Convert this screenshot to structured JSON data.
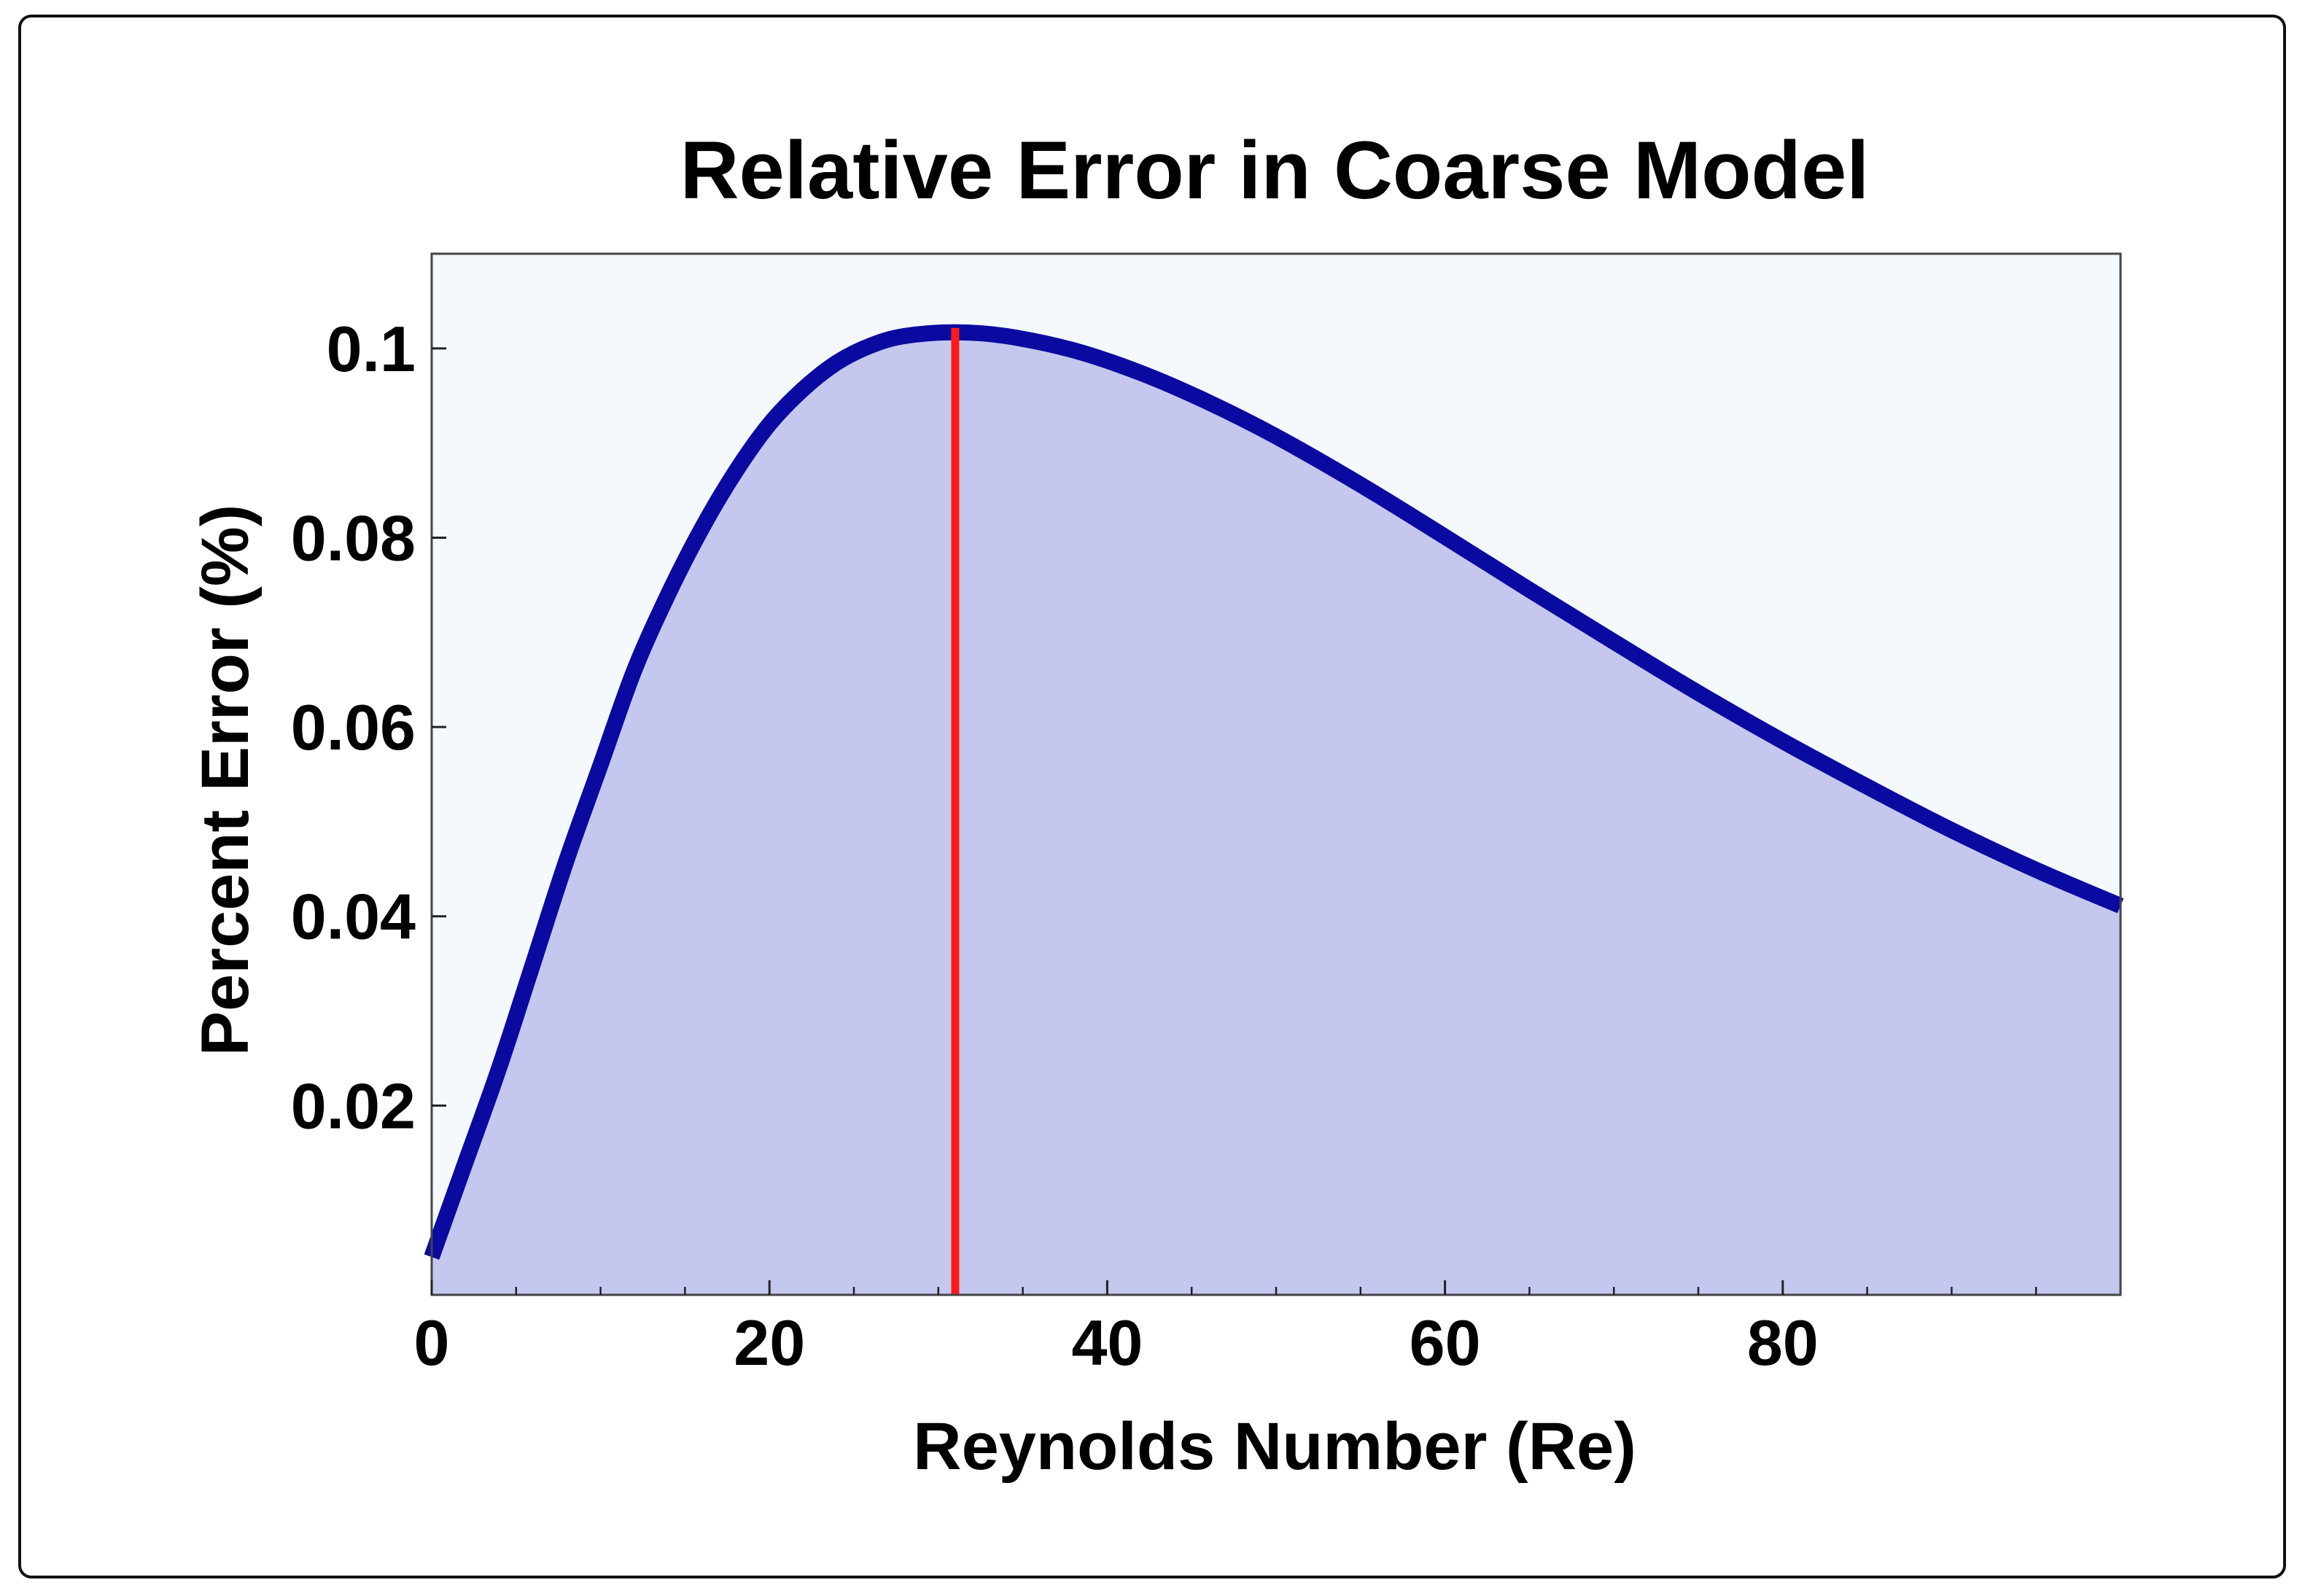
{
  "chart_data": {
    "type": "area",
    "title": "Relative Error in Coarse Model",
    "xlabel": "Reynolds Number (Re)",
    "ylabel": "Percent Error (%)",
    "xlim": [
      0,
      100
    ],
    "ylim": [
      0,
      0.11
    ],
    "x_ticks": [
      {
        "value": 0,
        "label": "0"
      },
      {
        "value": 20,
        "label": "20"
      },
      {
        "value": 40,
        "label": "40"
      },
      {
        "value": 60,
        "label": "60"
      },
      {
        "value": 80,
        "label": "80"
      }
    ],
    "y_ticks": [
      {
        "value": 0.02,
        "label": "0.02"
      },
      {
        "value": 0.04,
        "label": "0.04"
      },
      {
        "value": 0.06,
        "label": "0.06"
      },
      {
        "value": 0.08,
        "label": "0.08"
      },
      {
        "value": 0.1,
        "label": "0.1"
      }
    ],
    "x_minor_ticks": [
      5,
      10,
      15,
      25,
      30,
      35,
      45,
      50,
      55,
      65,
      70,
      75,
      85,
      90,
      95
    ],
    "y_minor_ticks": [],
    "series": [
      {
        "color": "#0a0aa0",
        "fill_color": "#c4c7ee",
        "points": [
          [
            0,
            0.004
          ],
          [
            2,
            0.014
          ],
          [
            4,
            0.024
          ],
          [
            6,
            0.035
          ],
          [
            8,
            0.046
          ],
          [
            10,
            0.056
          ],
          [
            12,
            0.066
          ],
          [
            14,
            0.074
          ],
          [
            16,
            0.081
          ],
          [
            18,
            0.087
          ],
          [
            20,
            0.092
          ],
          [
            22,
            0.0957
          ],
          [
            24,
            0.0985
          ],
          [
            26,
            0.1003
          ],
          [
            28,
            0.1013
          ],
          [
            31,
            0.1017
          ],
          [
            34,
            0.1013
          ],
          [
            38,
            0.0998
          ],
          [
            42,
            0.0974
          ],
          [
            46,
            0.0943
          ],
          [
            50,
            0.0907
          ],
          [
            55,
            0.0856
          ],
          [
            60,
            0.0801
          ],
          [
            65,
            0.0745
          ],
          [
            70,
            0.069
          ],
          [
            75,
            0.0636
          ],
          [
            80,
            0.0585
          ],
          [
            85,
            0.0537
          ],
          [
            90,
            0.0491
          ],
          [
            95,
            0.0449
          ],
          [
            100,
            0.0411
          ]
        ]
      }
    ],
    "marker_line": {
      "x": 31,
      "color": "#ff1a1a"
    },
    "plot_background": "#f4f9fe",
    "grid": false
  }
}
